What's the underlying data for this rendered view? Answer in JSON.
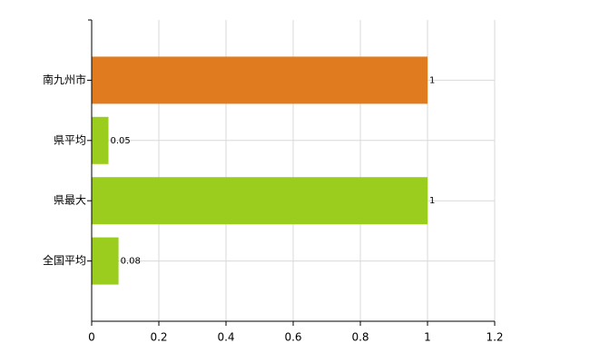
{
  "chart_data": {
    "type": "hbar",
    "categories": [
      "南九州市",
      "県平均",
      "県最大",
      "全国平均"
    ],
    "values": [
      1,
      0.05,
      1,
      0.08
    ],
    "colors": [
      "#e07b20",
      "#9acd1e",
      "#9acd1e",
      "#9acd1e"
    ],
    "xlim": [
      0,
      1.2
    ],
    "xticks": [
      0,
      0.2,
      0.4,
      0.6,
      0.8,
      1,
      1.2
    ],
    "grid": true
  }
}
